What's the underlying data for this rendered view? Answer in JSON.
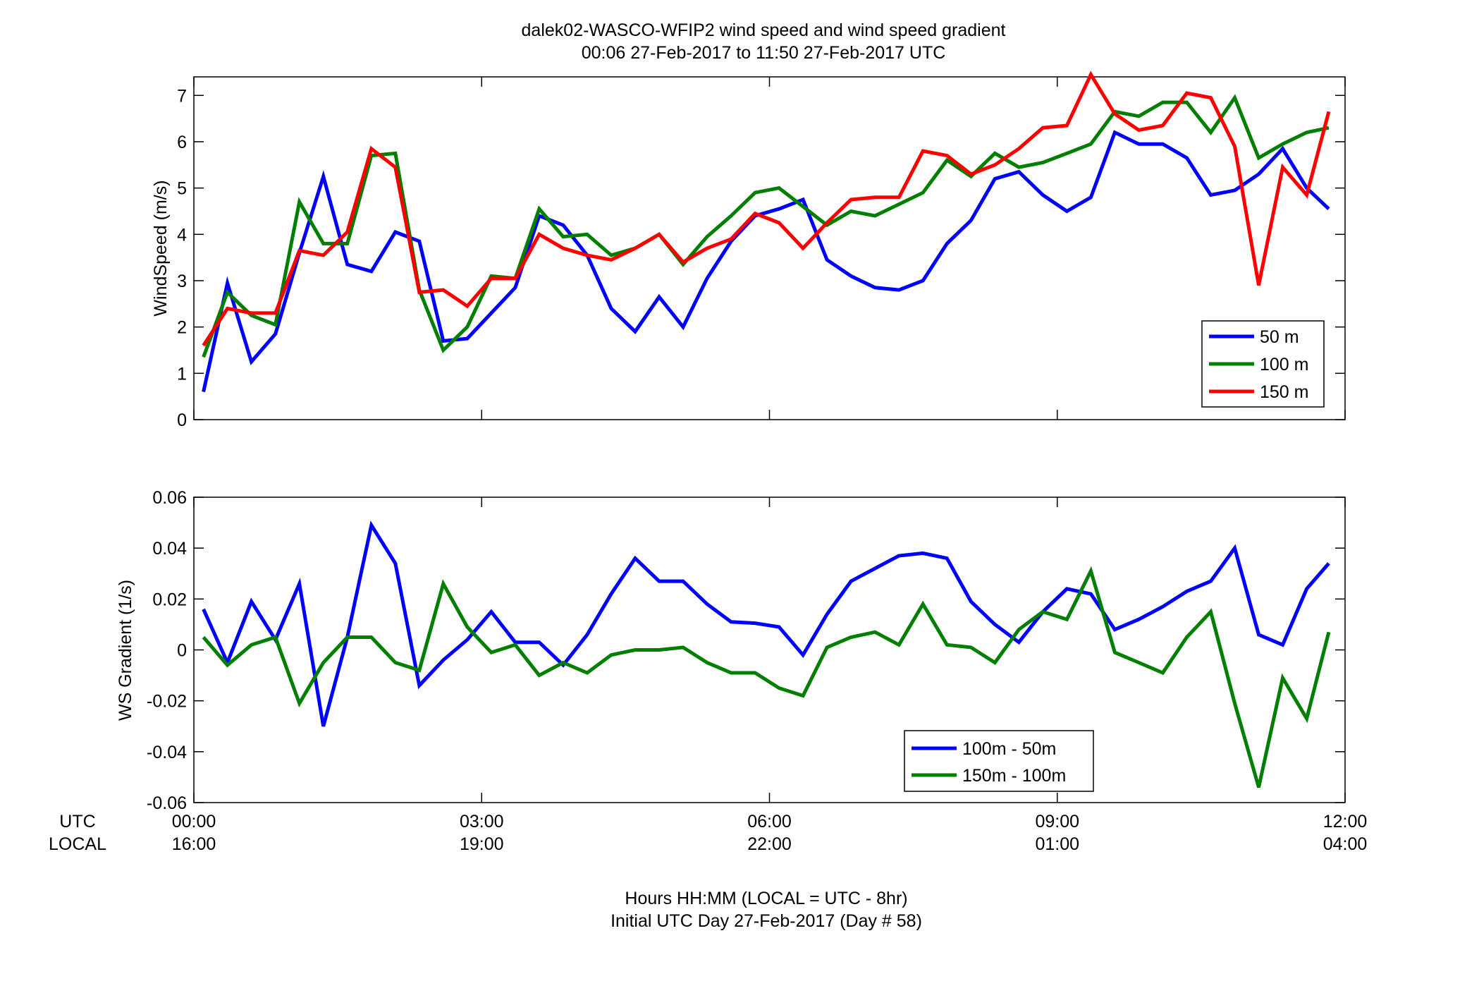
{
  "figure": {
    "title_line1": "dalek02-WASCO-WFIP2  wind speed and wind speed gradient",
    "title_line2": "00:06 27-Feb-2017 to 11:50 27-Feb-2017  UTC",
    "xlabel_line1": "Hours HH:MM  (LOCAL = UTC - 8hr)",
    "xlabel_line2": "Initial UTC Day 27-Feb-2017 (Day # 58)",
    "row_label_utc": "UTC",
    "row_label_local": "LOCAL",
    "x_ticks_utc": [
      "00:00",
      "03:00",
      "06:00",
      "09:00",
      "12:00"
    ],
    "x_ticks_local": [
      "16:00",
      "19:00",
      "22:00",
      "01:00",
      "04:00"
    ]
  },
  "chart_data": [
    {
      "type": "line",
      "ylabel": "WindSpeed (m/s)",
      "xlim": [
        0,
        12
      ],
      "ylim": [
        0,
        7.4
      ],
      "yticks": [
        0,
        1,
        2,
        3,
        4,
        5,
        6,
        7
      ],
      "ytick_labels": [
        "0",
        "1",
        "2",
        "3",
        "4",
        "5",
        "6",
        "7"
      ],
      "x_unit": "hours UTC since 00:00 27-Feb-2017",
      "x": [
        0.1,
        0.35,
        0.6,
        0.85,
        1.1,
        1.35,
        1.6,
        1.85,
        2.1,
        2.35,
        2.6,
        2.85,
        3.1,
        3.35,
        3.6,
        3.85,
        4.1,
        4.35,
        4.6,
        4.85,
        5.1,
        5.35,
        5.6,
        5.85,
        6.1,
        6.35,
        6.6,
        6.85,
        7.1,
        7.35,
        7.6,
        7.85,
        8.1,
        8.35,
        8.6,
        8.85,
        9.1,
        9.35,
        9.6,
        9.85,
        10.1,
        10.35,
        10.6,
        10.85,
        11.1,
        11.35,
        11.6,
        11.83
      ],
      "series": [
        {
          "name": "50 m",
          "color": "#0000ff",
          "values": [
            0.6,
            2.95,
            1.25,
            1.85,
            3.6,
            5.25,
            3.35,
            3.2,
            4.05,
            3.85,
            1.7,
            1.75,
            2.3,
            2.85,
            4.4,
            4.2,
            3.55,
            2.4,
            1.9,
            2.65,
            2.0,
            3.05,
            3.85,
            4.4,
            4.55,
            4.75,
            3.45,
            3.1,
            2.85,
            2.8,
            3.0,
            3.8,
            4.3,
            5.2,
            5.35,
            4.85,
            4.5,
            4.8,
            6.2,
            5.95,
            5.95,
            5.65,
            4.85,
            4.95,
            5.3,
            5.85,
            5.0,
            4.55
          ]
        },
        {
          "name": "100 m",
          "color": "#007f00",
          "values": [
            1.35,
            2.75,
            2.25,
            2.05,
            4.7,
            3.8,
            3.8,
            5.7,
            5.75,
            2.8,
            1.5,
            2.0,
            3.1,
            3.05,
            4.55,
            3.95,
            4.0,
            3.55,
            3.7,
            4.0,
            3.35,
            3.95,
            4.4,
            4.9,
            5.0,
            4.6,
            4.2,
            4.5,
            4.4,
            4.65,
            4.9,
            5.6,
            5.25,
            5.75,
            5.45,
            5.55,
            5.75,
            5.95,
            6.65,
            6.55,
            6.85,
            6.85,
            6.2,
            6.95,
            5.65,
            5.95,
            6.2,
            6.3
          ]
        },
        {
          "name": "150 m",
          "color": "#ff0000",
          "values": [
            1.6,
            2.4,
            2.3,
            2.3,
            3.65,
            3.55,
            4.05,
            5.85,
            5.45,
            2.75,
            2.8,
            2.45,
            3.05,
            3.05,
            4.0,
            3.7,
            3.55,
            3.45,
            3.7,
            4.0,
            3.4,
            3.7,
            3.9,
            4.45,
            4.25,
            3.7,
            4.25,
            4.75,
            4.8,
            4.8,
            5.8,
            5.7,
            5.3,
            5.5,
            5.85,
            6.3,
            6.35,
            7.45,
            6.6,
            6.25,
            6.35,
            7.05,
            6.95,
            5.9,
            2.9,
            5.45,
            4.85,
            6.65
          ]
        }
      ],
      "legend": {
        "location": "bottom-right",
        "entries": [
          "50 m",
          "100 m",
          "150 m"
        ]
      }
    },
    {
      "type": "line",
      "ylabel": "WS Gradient (1/s)",
      "xlim": [
        0,
        12
      ],
      "ylim": [
        -0.06,
        0.06
      ],
      "yticks": [
        -0.06,
        -0.04,
        -0.02,
        0,
        0.02,
        0.04,
        0.06
      ],
      "ytick_labels": [
        "-0.06",
        "-0.04",
        "-0.02",
        "0",
        "0.02",
        "0.04",
        "0.06"
      ],
      "x_unit": "hours UTC since 00:00 27-Feb-2017",
      "x": [
        0.1,
        0.35,
        0.6,
        0.85,
        1.1,
        1.35,
        1.6,
        1.85,
        2.1,
        2.35,
        2.6,
        2.85,
        3.1,
        3.35,
        3.6,
        3.85,
        4.1,
        4.35,
        4.6,
        4.85,
        5.1,
        5.35,
        5.6,
        5.85,
        6.1,
        6.35,
        6.6,
        6.85,
        7.1,
        7.35,
        7.6,
        7.85,
        8.1,
        8.35,
        8.6,
        8.85,
        9.1,
        9.35,
        9.6,
        9.85,
        10.1,
        10.35,
        10.6,
        10.85,
        11.1,
        11.35,
        11.6,
        11.83
      ],
      "series": [
        {
          "name": "100m - 50m",
          "color": "#0000ff",
          "values": [
            0.016,
            -0.005,
            0.019,
            0.004,
            0.026,
            -0.03,
            0.005,
            0.049,
            0.034,
            -0.014,
            -0.004,
            0.004,
            0.015,
            0.003,
            0.003,
            -0.006,
            0.006,
            0.022,
            0.036,
            0.027,
            0.027,
            0.018,
            0.011,
            0.0105,
            0.009,
            -0.002,
            0.014,
            0.027,
            0.032,
            0.037,
            0.038,
            0.036,
            0.019,
            0.01,
            0.003,
            0.015,
            0.024,
            0.022,
            0.008,
            0.012,
            0.017,
            0.023,
            0.027,
            0.04,
            0.006,
            0.002,
            0.024,
            0.034
          ]
        },
        {
          "name": "150m - 100m",
          "color": "#007f00",
          "values": [
            0.005,
            -0.006,
            0.002,
            0.005,
            -0.021,
            -0.005,
            0.005,
            0.005,
            -0.005,
            -0.008,
            0.026,
            0.009,
            -0.001,
            0.002,
            -0.01,
            -0.005,
            -0.009,
            -0.002,
            0.0,
            0.0,
            0.001,
            -0.005,
            -0.009,
            -0.009,
            -0.015,
            -0.018,
            0.001,
            0.005,
            0.007,
            0.002,
            0.018,
            0.002,
            0.001,
            -0.005,
            0.008,
            0.015,
            0.012,
            0.031,
            -0.001,
            -0.005,
            -0.009,
            0.005,
            0.015,
            -0.021,
            -0.054,
            -0.011,
            -0.027,
            0.007
          ]
        }
      ],
      "legend": {
        "location": "bottom-center",
        "entries": [
          "100m - 50m",
          "150m - 100m"
        ]
      }
    }
  ]
}
